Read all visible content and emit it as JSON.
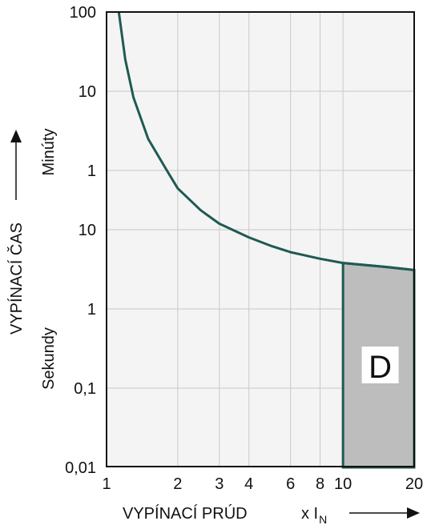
{
  "chart_data": {
    "type": "line",
    "title": "",
    "xlabel": "VYPÍNACÍ PRÚD",
    "xlabel_unit_prefix": "x I",
    "xlabel_unit_subscript": "N",
    "ylabel": "VYPÍNACÍ ČAS",
    "ylabel_minutes": "Minúty",
    "ylabel_seconds": "Sekundy",
    "x_scale": "log",
    "xlim": [
      1,
      20
    ],
    "x_ticks": [
      {
        "value": 1,
        "label": "1"
      },
      {
        "value": 2,
        "label": "2"
      },
      {
        "value": 3,
        "label": "3"
      },
      {
        "value": 4,
        "label": "4"
      },
      {
        "value": 6,
        "label": "6"
      },
      {
        "value": 8,
        "label": "8"
      },
      {
        "value": 10,
        "label": "10"
      },
      {
        "value": 20,
        "label": "20"
      }
    ],
    "y_scale": "log",
    "y_ticks": [
      {
        "seconds": 6000,
        "label": "100"
      },
      {
        "seconds": 600,
        "label": "10"
      },
      {
        "seconds": 60,
        "label": "1"
      },
      {
        "seconds": 10,
        "label": "10"
      },
      {
        "seconds": 1,
        "label": "1"
      },
      {
        "seconds": 0.1,
        "label": "0,1"
      },
      {
        "seconds": 0.01,
        "label": "0,01"
      }
    ],
    "grid": true,
    "series": [
      {
        "color": "#1f5a52",
        "x": [
          1.12,
          1.2,
          1.3,
          1.5,
          1.8,
          2.0,
          2.5,
          3.0,
          4.0,
          5.0,
          6.0,
          8.0,
          10.0,
          15.0,
          20.0
        ],
        "y_seconds": [
          6000,
          1500,
          500,
          150,
          60,
          35,
          18,
          12,
          8,
          6.2,
          5.2,
          4.3,
          3.8,
          3.4,
          3.1
        ]
      }
    ],
    "zone": {
      "label": "D",
      "x_range": [
        10,
        20
      ],
      "y_bottom_seconds": 0.01,
      "top_follows_curve": true,
      "fill": "#bdbdbd",
      "stroke": "#1f5a52"
    },
    "colors": {
      "plot_background": "#f4f4f4",
      "grid": "#c9c9c9",
      "frame": "#111111",
      "curve": "#1f5a52"
    }
  }
}
